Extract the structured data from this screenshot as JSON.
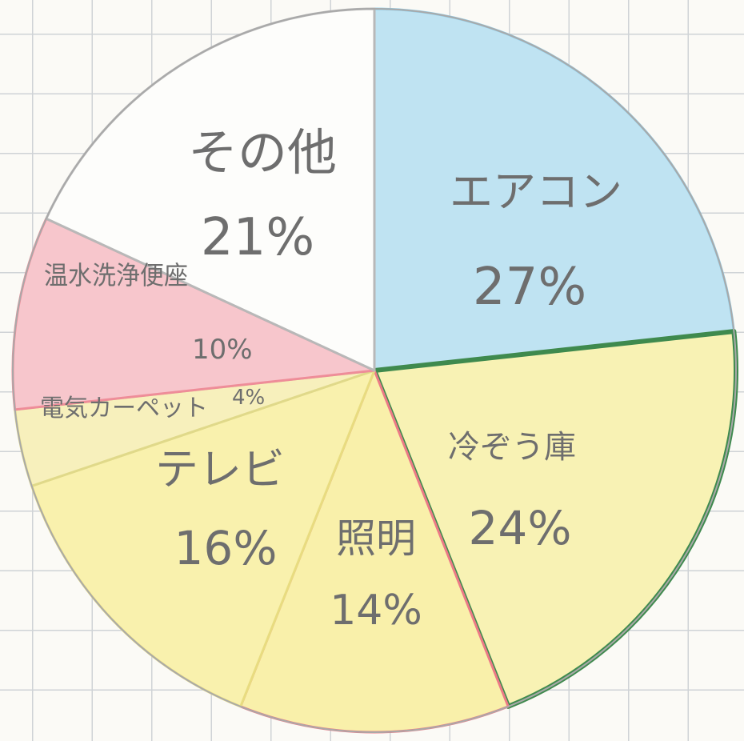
{
  "chart_data": {
    "type": "pie",
    "title": "",
    "slices": [
      {
        "name": "エアコン",
        "value": 27,
        "value_label": "27%",
        "color": "#bfe3f2",
        "edge": "#8fcbe6"
      },
      {
        "name": "冷ぞう庫",
        "value": 24,
        "value_label": "24%",
        "color": "#f8f2b4",
        "edge": "#3f8a4e"
      },
      {
        "name": "照明",
        "value": 14,
        "value_label": "14%",
        "color": "#f9f0aa",
        "edge": "#ec7a86"
      },
      {
        "name": "テレビ",
        "value": 16,
        "value_label": "16%",
        "color": "#f9f1ad",
        "edge": "#e8dc80"
      },
      {
        "name": "電気カーペット",
        "value": 4,
        "value_label": "4%",
        "color": "#f7f0bc",
        "edge": "#e0d98a"
      },
      {
        "name": "温水洗浄便座",
        "value": 10,
        "value_label": "10%",
        "color": "#f7c6cc",
        "edge": "#ee8d99"
      },
      {
        "name": "その他",
        "value": 21,
        "value_label": "21%",
        "color": "#fdfdfb",
        "edge": "#b8b8b8"
      }
    ],
    "start_angle_deg": 0,
    "direction": "clockwise",
    "legend": "none"
  }
}
